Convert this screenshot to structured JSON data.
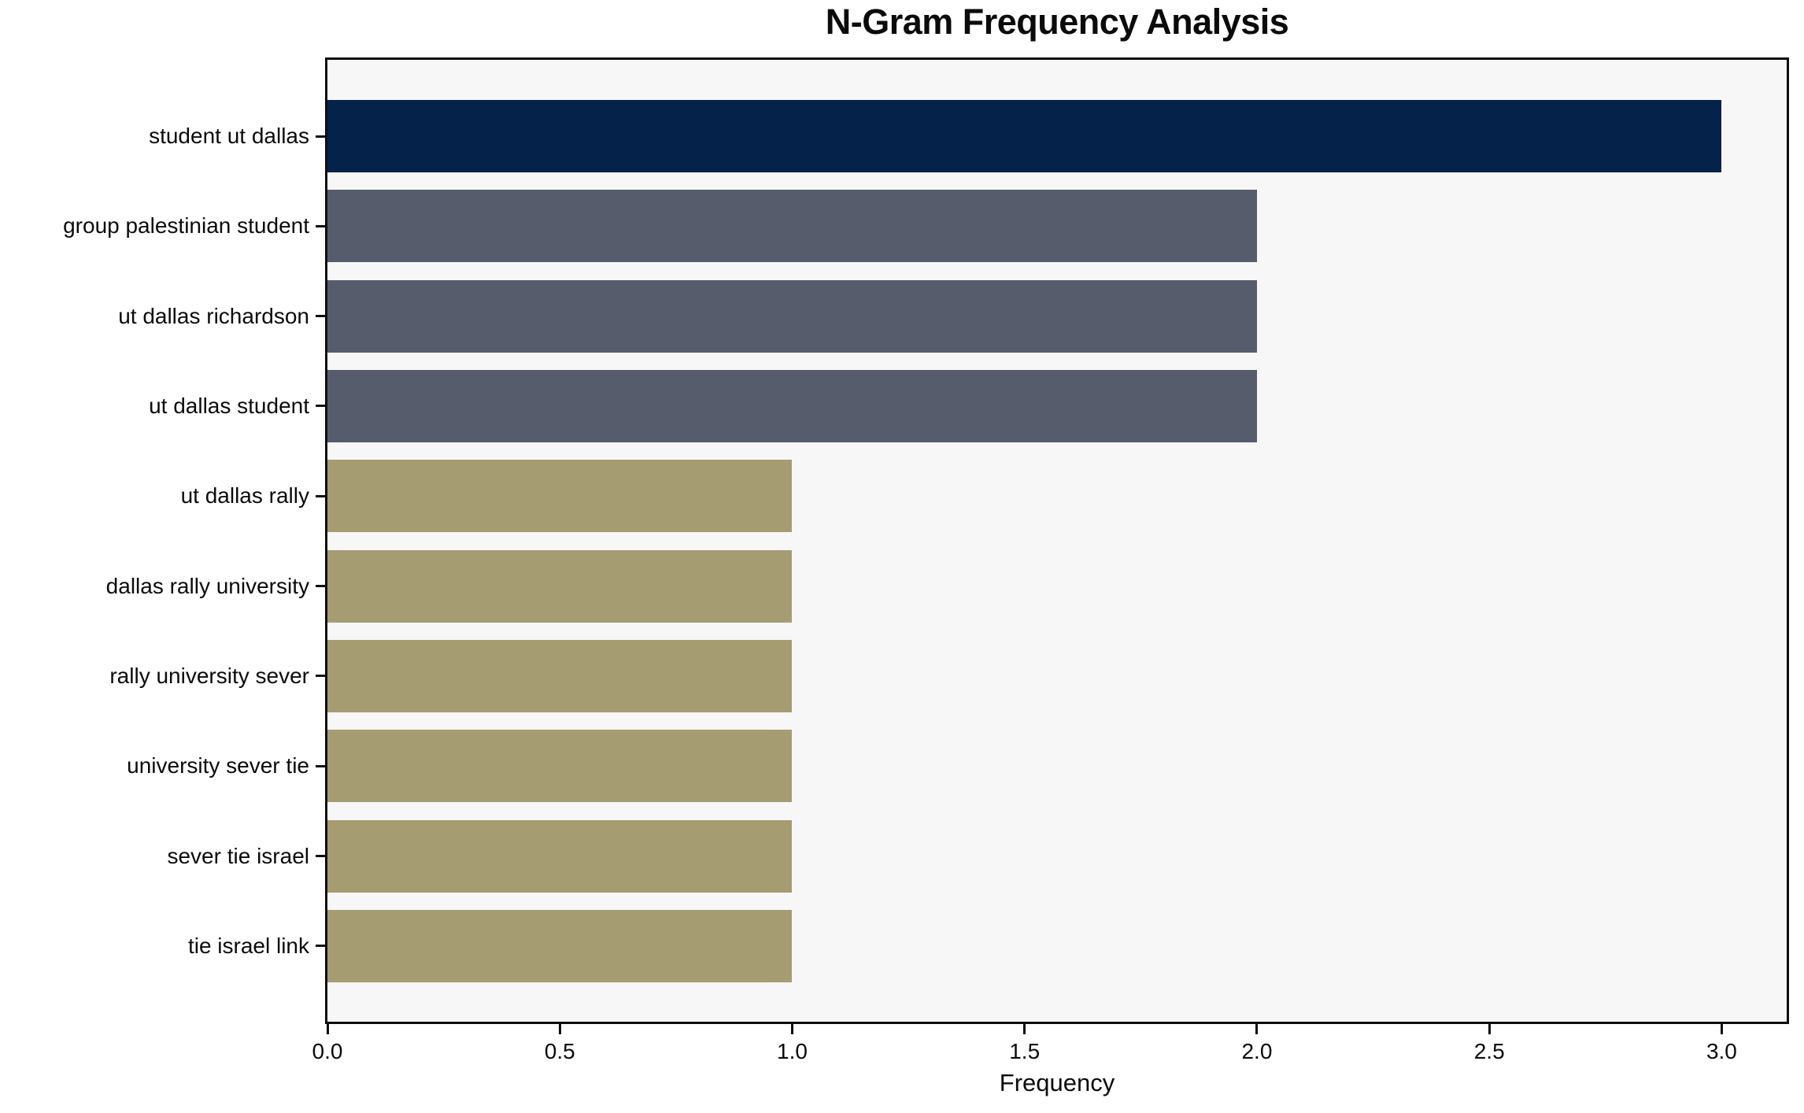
{
  "chart_data": {
    "type": "bar",
    "orientation": "horizontal",
    "title": "N-Gram Frequency Analysis",
    "xlabel": "Frequency",
    "ylabel": "",
    "categories": [
      "student ut dallas",
      "group palestinian student",
      "ut dallas richardson",
      "ut dallas student",
      "ut dallas rally",
      "dallas rally university",
      "rally university sever",
      "university sever tie",
      "sever tie israel",
      "tie israel link"
    ],
    "values": [
      3,
      2,
      2,
      2,
      1,
      1,
      1,
      1,
      1,
      1
    ],
    "bar_colors": [
      "#05224a",
      "#565c6b",
      "#565c6b",
      "#565c6b",
      "#a59c72",
      "#a59c72",
      "#a59c72",
      "#a59c72",
      "#a59c72",
      "#a59c72"
    ],
    "xlim": [
      0,
      3.15
    ],
    "x_ticks": [
      {
        "value": 0,
        "label": "0.0"
      },
      {
        "value": 0.5,
        "label": "0.5"
      },
      {
        "value": 1,
        "label": "1.0"
      },
      {
        "value": 1.5,
        "label": "1.5"
      },
      {
        "value": 2,
        "label": "2.0"
      },
      {
        "value": 2.5,
        "label": "2.5"
      },
      {
        "value": 3,
        "label": "3.0"
      }
    ],
    "plot_background": "#f7f7f7",
    "figure_background": "#ffffff",
    "axis_color": "#0e0e0e",
    "grid": false,
    "legend_position": "none"
  }
}
